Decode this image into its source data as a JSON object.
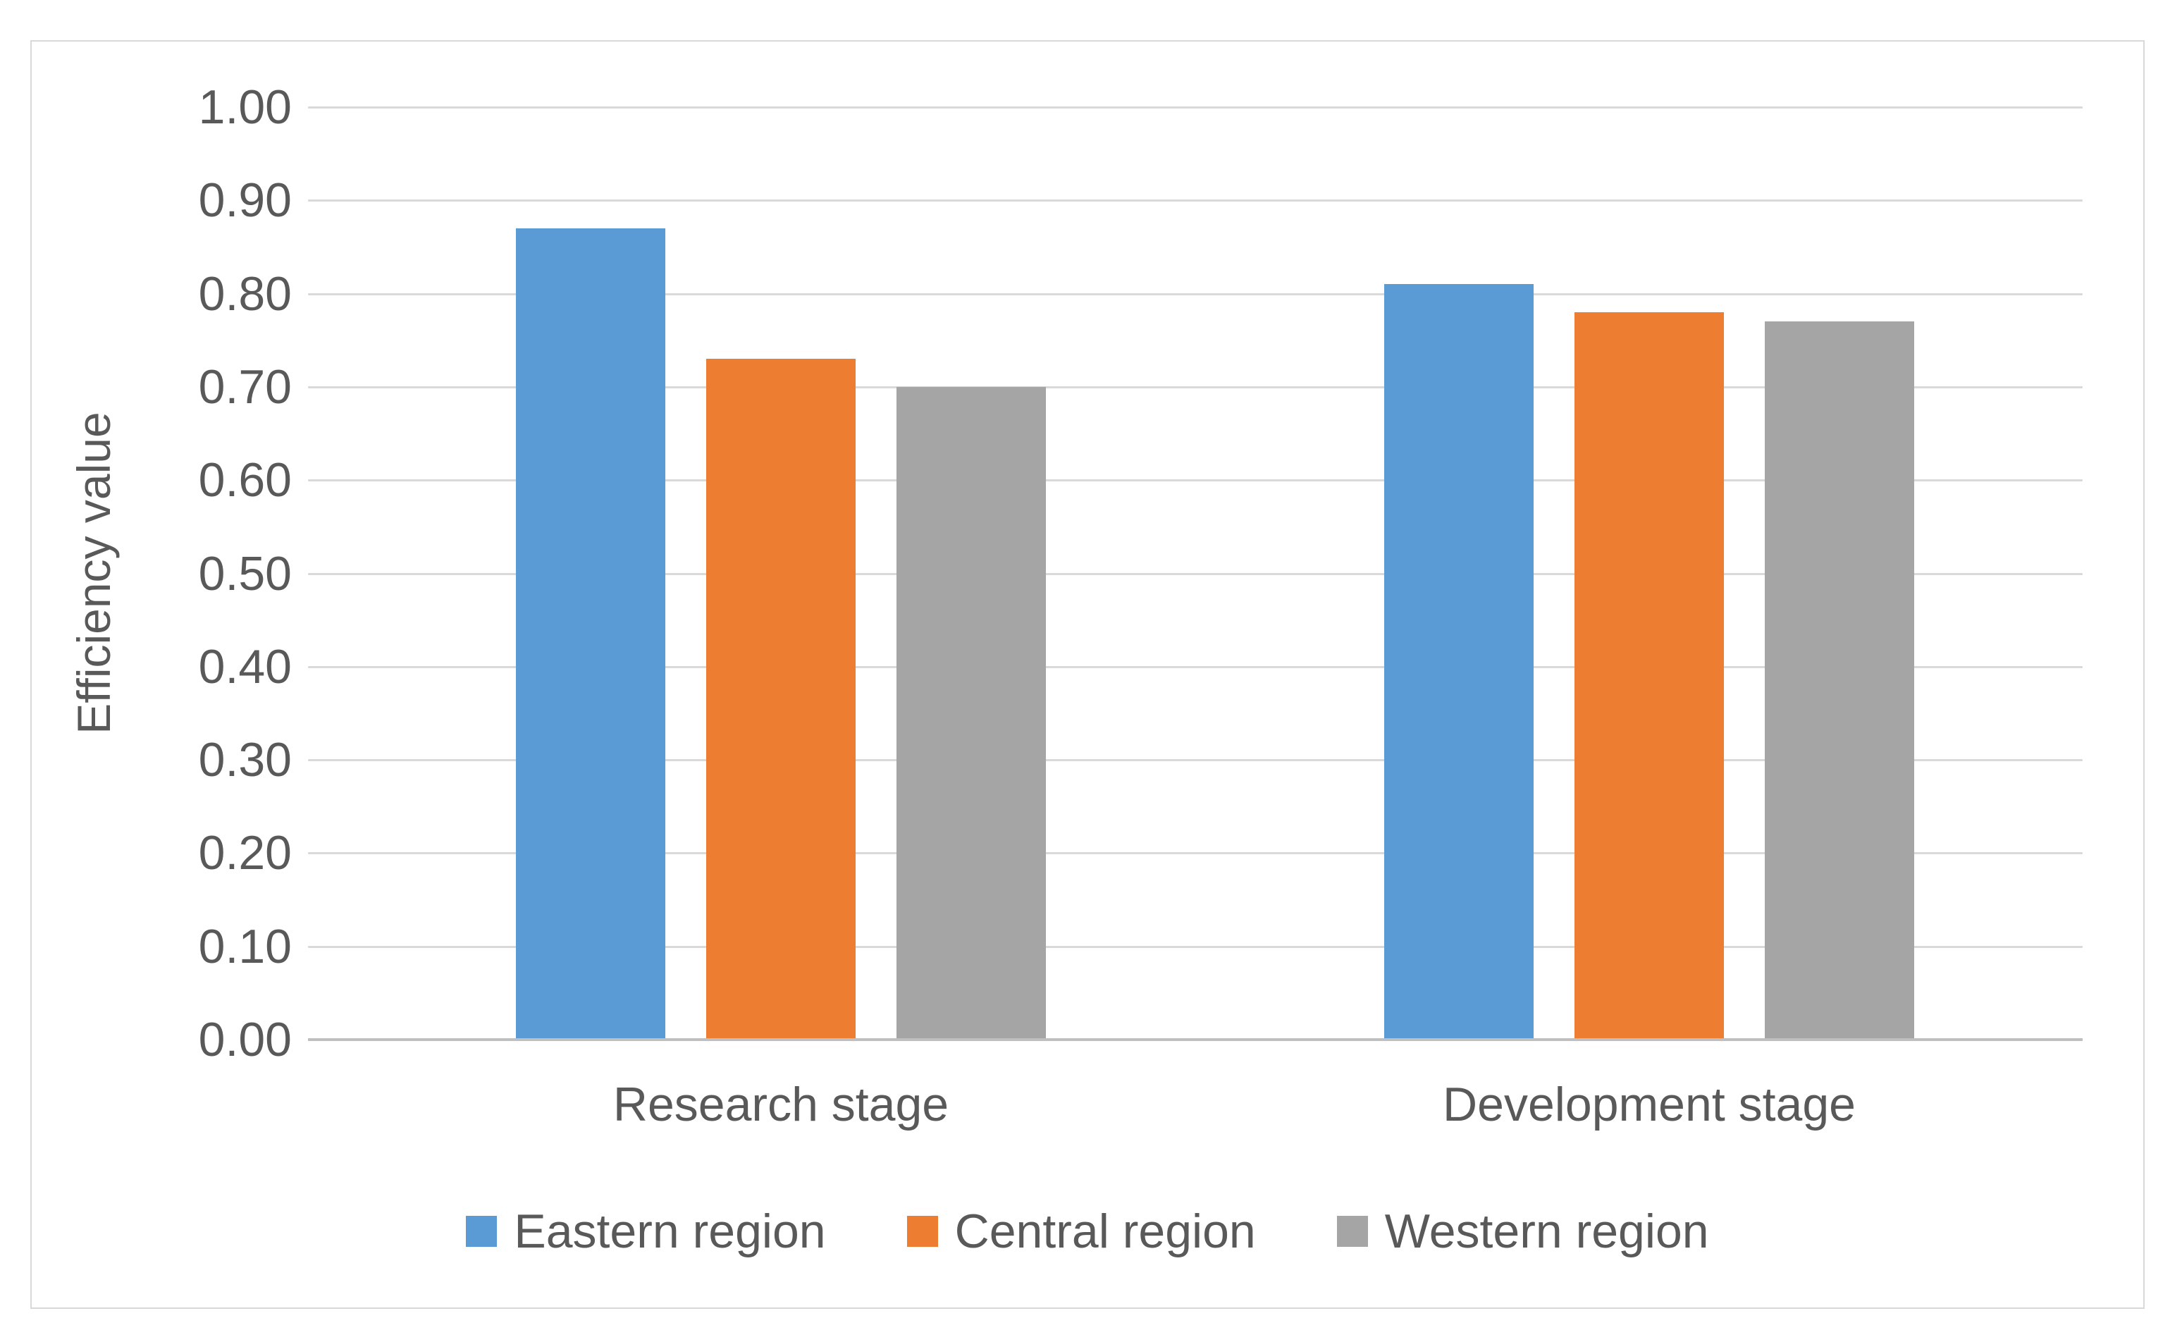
{
  "chart_data": {
    "type": "bar",
    "title": "",
    "categories": [
      "Research stage",
      "Development stage"
    ],
    "series": [
      {
        "name": "Eastern region",
        "color": "#5B9BD5",
        "values": [
          0.87,
          0.81
        ]
      },
      {
        "name": "Central region",
        "color": "#ED7D31",
        "values": [
          0.73,
          0.78
        ]
      },
      {
        "name": "Western region",
        "color": "#A5A5A5",
        "values": [
          0.7,
          0.77
        ]
      }
    ],
    "xlabel": "",
    "ylabel": "Efficiency value",
    "ylim": [
      0,
      1
    ],
    "ytick_step": 0.1,
    "ytick_labels": [
      "0.00",
      "0.10",
      "0.20",
      "0.30",
      "0.40",
      "0.50",
      "0.60",
      "0.70",
      "0.80",
      "0.90",
      "1.00"
    ],
    "grid": true,
    "legend_position": "bottom",
    "legend_entries": [
      "Eastern region",
      "Central region",
      "Western region"
    ]
  },
  "style": {
    "background": "#FFFFFF",
    "text_color": "#595959",
    "gridline_color": "#D9D9D9",
    "axis_line_color": "#BFBFBF",
    "frame_border_color": "#D9D9D9"
  }
}
